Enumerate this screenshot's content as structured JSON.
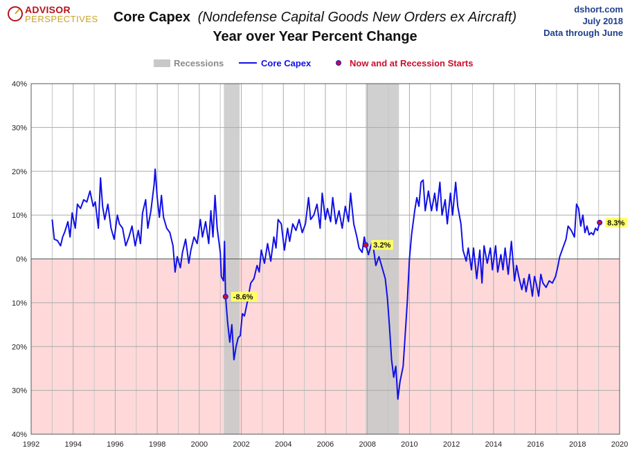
{
  "logo": {
    "line1": "ADVISOR",
    "line2": "PERSPECTIVES"
  },
  "source": {
    "site": "dshort.com",
    "date": "July 2018",
    "note": "Data through June"
  },
  "chart_data": {
    "type": "line",
    "title_main": "Core Capex",
    "title_paren": "(Nondefense  Capital Goods New Orders ex Aircraft)",
    "subtitle": "Year over Year Percent Change",
    "legend": [
      {
        "label": "Recessions",
        "color": "#c8c8c8"
      },
      {
        "label": "Core Capex",
        "color": "#1010e6"
      },
      {
        "label": "Now and at Recession Starts",
        "color": "#c8102e"
      }
    ],
    "xlim": [
      1992,
      2020
    ],
    "ylim": [
      -40,
      40
    ],
    "x_ticks": [
      "1992",
      "1994",
      "1996",
      "1998",
      "2000",
      "2002",
      "2004",
      "2006",
      "2008",
      "2010",
      "2012",
      "2014",
      "2016",
      "2018",
      "2020"
    ],
    "y_ticks": [
      "40%",
      "30%",
      "20%",
      "10%",
      "0%",
      "10%",
      "20%",
      "30%",
      "40%"
    ],
    "y_tick_values": [
      40,
      30,
      20,
      10,
      0,
      -10,
      -20,
      -30,
      -40
    ],
    "grid": true,
    "negative_region_color": "#ffd9d9",
    "recessions": [
      [
        2001.17,
        2001.92
      ],
      [
        2007.92,
        2009.5
      ]
    ],
    "series": [
      {
        "name": "Core Capex",
        "color": "#1010e6",
        "points": [
          [
            1993.0,
            9.0
          ],
          [
            1993.1,
            4.5
          ],
          [
            1993.25,
            4.2
          ],
          [
            1993.4,
            3.0
          ],
          [
            1993.5,
            5.0
          ],
          [
            1993.6,
            6.2
          ],
          [
            1993.75,
            8.5
          ],
          [
            1993.85,
            5.0
          ],
          [
            1993.95,
            10.5
          ],
          [
            1994.1,
            7.0
          ],
          [
            1994.2,
            12.5
          ],
          [
            1994.35,
            11.5
          ],
          [
            1994.5,
            13.5
          ],
          [
            1994.65,
            13.0
          ],
          [
            1994.8,
            15.5
          ],
          [
            1994.95,
            12.0
          ],
          [
            1995.05,
            13.0
          ],
          [
            1995.2,
            7.0
          ],
          [
            1995.3,
            18.5
          ],
          [
            1995.4,
            12.0
          ],
          [
            1995.5,
            9.0
          ],
          [
            1995.65,
            12.5
          ],
          [
            1995.8,
            7.0
          ],
          [
            1995.95,
            4.5
          ],
          [
            1996.1,
            10.0
          ],
          [
            1996.2,
            8.0
          ],
          [
            1996.35,
            7.0
          ],
          [
            1996.5,
            3.0
          ],
          [
            1996.65,
            5.0
          ],
          [
            1996.8,
            7.5
          ],
          [
            1996.95,
            3.0
          ],
          [
            1997.1,
            6.5
          ],
          [
            1997.2,
            3.5
          ],
          [
            1997.3,
            10.5
          ],
          [
            1997.45,
            13.5
          ],
          [
            1997.55,
            7.0
          ],
          [
            1997.7,
            11.0
          ],
          [
            1997.85,
            17.0
          ],
          [
            1997.9,
            20.5
          ],
          [
            1998.0,
            14.0
          ],
          [
            1998.1,
            9.5
          ],
          [
            1998.2,
            14.5
          ],
          [
            1998.3,
            9.5
          ],
          [
            1998.45,
            7.0
          ],
          [
            1998.6,
            6.0
          ],
          [
            1998.75,
            3.0
          ],
          [
            1998.85,
            -3.0
          ],
          [
            1998.95,
            0.5
          ],
          [
            1999.1,
            -2.0
          ],
          [
            1999.2,
            1.5
          ],
          [
            1999.35,
            4.5
          ],
          [
            1999.5,
            -1.0
          ],
          [
            1999.6,
            2.0
          ],
          [
            1999.75,
            5.0
          ],
          [
            1999.9,
            3.5
          ],
          [
            2000.05,
            9.0
          ],
          [
            2000.15,
            5.0
          ],
          [
            2000.3,
            8.5
          ],
          [
            2000.45,
            3.5
          ],
          [
            2000.55,
            11.0
          ],
          [
            2000.65,
            5.0
          ],
          [
            2000.75,
            14.5
          ],
          [
            2000.85,
            7.0
          ],
          [
            2001.0,
            1.5
          ],
          [
            2001.05,
            -4.0
          ],
          [
            2001.15,
            -5.0
          ],
          [
            2001.2,
            4.0
          ],
          [
            2001.25,
            -8.6
          ],
          [
            2001.35,
            -14.5
          ],
          [
            2001.45,
            -19.0
          ],
          [
            2001.55,
            -15.0
          ],
          [
            2001.65,
            -23.0
          ],
          [
            2001.75,
            -20.0
          ],
          [
            2001.85,
            -18.0
          ],
          [
            2001.95,
            -17.5
          ],
          [
            2002.05,
            -12.5
          ],
          [
            2002.15,
            -13.0
          ],
          [
            2002.3,
            -9.5
          ],
          [
            2002.45,
            -5.5
          ],
          [
            2002.6,
            -4.5
          ],
          [
            2002.75,
            -1.5
          ],
          [
            2002.85,
            -3.0
          ],
          [
            2002.95,
            2.0
          ],
          [
            2003.1,
            -1.0
          ],
          [
            2003.25,
            3.5
          ],
          [
            2003.4,
            -0.5
          ],
          [
            2003.55,
            5.0
          ],
          [
            2003.65,
            2.5
          ],
          [
            2003.75,
            9.0
          ],
          [
            2003.9,
            8.0
          ],
          [
            2004.05,
            2.0
          ],
          [
            2004.2,
            7.0
          ],
          [
            2004.3,
            4.0
          ],
          [
            2004.45,
            8.0
          ],
          [
            2004.6,
            6.5
          ],
          [
            2004.75,
            9.0
          ],
          [
            2004.9,
            6.0
          ],
          [
            2005.05,
            8.0
          ],
          [
            2005.2,
            14.0
          ],
          [
            2005.3,
            9.0
          ],
          [
            2005.45,
            10.0
          ],
          [
            2005.6,
            12.5
          ],
          [
            2005.75,
            7.0
          ],
          [
            2005.85,
            15.0
          ],
          [
            2006.0,
            9.0
          ],
          [
            2006.1,
            11.5
          ],
          [
            2006.25,
            8.5
          ],
          [
            2006.35,
            14.0
          ],
          [
            2006.5,
            8.0
          ],
          [
            2006.65,
            11.0
          ],
          [
            2006.8,
            7.0
          ],
          [
            2006.95,
            12.0
          ],
          [
            2007.1,
            8.5
          ],
          [
            2007.2,
            15.0
          ],
          [
            2007.35,
            8.0
          ],
          [
            2007.5,
            5.0
          ],
          [
            2007.6,
            2.5
          ],
          [
            2007.75,
            1.5
          ],
          [
            2007.85,
            5.0
          ],
          [
            2007.92,
            3.2
          ],
          [
            2008.05,
            1.0
          ],
          [
            2008.2,
            3.5
          ],
          [
            2008.3,
            2.0
          ],
          [
            2008.4,
            -1.5
          ],
          [
            2008.55,
            0.5
          ],
          [
            2008.7,
            -2.0
          ],
          [
            2008.85,
            -4.5
          ],
          [
            2008.95,
            -9.0
          ],
          [
            2009.05,
            -15.5
          ],
          [
            2009.15,
            -23.0
          ],
          [
            2009.25,
            -27.0
          ],
          [
            2009.35,
            -24.5
          ],
          [
            2009.45,
            -32.0
          ],
          [
            2009.55,
            -28.0
          ],
          [
            2009.7,
            -24.5
          ],
          [
            2009.8,
            -17.0
          ],
          [
            2009.9,
            -9.5
          ],
          [
            2010.0,
            0.0
          ],
          [
            2010.1,
            5.5
          ],
          [
            2010.25,
            11.0
          ],
          [
            2010.35,
            14.0
          ],
          [
            2010.45,
            12.0
          ],
          [
            2010.55,
            17.5
          ],
          [
            2010.65,
            18.0
          ],
          [
            2010.75,
            11.0
          ],
          [
            2010.9,
            15.5
          ],
          [
            2011.05,
            11.0
          ],
          [
            2011.2,
            15.0
          ],
          [
            2011.3,
            11.0
          ],
          [
            2011.45,
            17.5
          ],
          [
            2011.55,
            10.0
          ],
          [
            2011.7,
            13.5
          ],
          [
            2011.8,
            8.0
          ],
          [
            2011.95,
            15.0
          ],
          [
            2012.05,
            10.0
          ],
          [
            2012.2,
            17.5
          ],
          [
            2012.3,
            12.0
          ],
          [
            2012.45,
            8.0
          ],
          [
            2012.55,
            2.0
          ],
          [
            2012.7,
            -0.5
          ],
          [
            2012.8,
            2.5
          ],
          [
            2012.95,
            -2.5
          ],
          [
            2013.05,
            2.5
          ],
          [
            2013.2,
            -4.5
          ],
          [
            2013.35,
            2.0
          ],
          [
            2013.45,
            -5.5
          ],
          [
            2013.55,
            3.0
          ],
          [
            2013.7,
            -1.0
          ],
          [
            2013.85,
            2.5
          ],
          [
            2013.95,
            -2.5
          ],
          [
            2014.1,
            3.0
          ],
          [
            2014.2,
            -3.0
          ],
          [
            2014.35,
            1.0
          ],
          [
            2014.45,
            -2.5
          ],
          [
            2014.55,
            2.5
          ],
          [
            2014.7,
            -3.5
          ],
          [
            2014.85,
            4.0
          ],
          [
            2015.0,
            -5.0
          ],
          [
            2015.1,
            -1.5
          ],
          [
            2015.2,
            -4.0
          ],
          [
            2015.35,
            -7.0
          ],
          [
            2015.45,
            -4.5
          ],
          [
            2015.55,
            -7.5
          ],
          [
            2015.7,
            -3.5
          ],
          [
            2015.85,
            -8.5
          ],
          [
            2015.95,
            -4.0
          ],
          [
            2016.05,
            -6.0
          ],
          [
            2016.15,
            -8.5
          ],
          [
            2016.25,
            -3.5
          ],
          [
            2016.35,
            -5.5
          ],
          [
            2016.5,
            -6.5
          ],
          [
            2016.65,
            -5.0
          ],
          [
            2016.8,
            -5.5
          ],
          [
            2016.95,
            -4.0
          ],
          [
            2017.05,
            -2.0
          ],
          [
            2017.15,
            0.5
          ],
          [
            2017.3,
            2.5
          ],
          [
            2017.45,
            4.5
          ],
          [
            2017.55,
            7.5
          ],
          [
            2017.7,
            6.5
          ],
          [
            2017.85,
            5.0
          ],
          [
            2017.95,
            12.5
          ],
          [
            2018.05,
            11.5
          ],
          [
            2018.15,
            7.5
          ],
          [
            2018.25,
            10.0
          ],
          [
            2018.35,
            6.0
          ],
          [
            2018.45,
            7.5
          ],
          [
            2018.55,
            5.5
          ],
          [
            2018.65,
            6.0
          ],
          [
            2018.75,
            5.5
          ],
          [
            2018.85,
            7.0
          ],
          [
            2018.95,
            6.5
          ],
          [
            2019.05,
            8.3
          ]
        ]
      }
    ],
    "markers": [
      {
        "x": 2001.25,
        "y": -8.6,
        "label": "-8.6%",
        "color": "#c8102e"
      },
      {
        "x": 2007.92,
        "y": 3.2,
        "label": "3.2%",
        "color": "#c8102e"
      },
      {
        "x": 2019.05,
        "y": 8.3,
        "label": "8.3%",
        "color": "#c8102e"
      }
    ]
  }
}
